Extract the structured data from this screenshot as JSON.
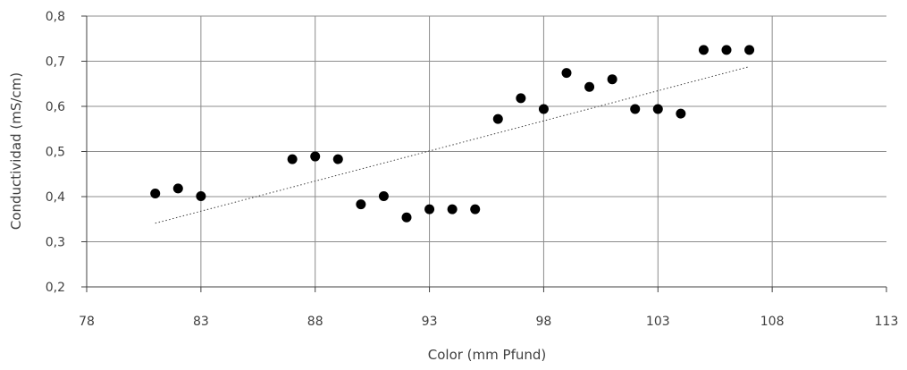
{
  "chart_data": {
    "type": "scatter",
    "title": "",
    "xlabel": "Color (mm Pfund)",
    "ylabel": "Conductividad (mS/cm)",
    "xlim": [
      78,
      113
    ],
    "ylim": [
      0.2,
      0.8
    ],
    "x_ticks": [
      "78",
      "83",
      "88",
      "93",
      "98",
      "103",
      "108",
      "113"
    ],
    "y_ticks": [
      "0,2",
      "0,3",
      "0,4",
      "0,5",
      "0,6",
      "0,7",
      "0,8"
    ],
    "grid": true,
    "legend": "none",
    "series": [
      {
        "marker_color": "#000000",
        "points": [
          {
            "x": 81,
            "y": 0.407
          },
          {
            "x": 82,
            "y": 0.418
          },
          {
            "x": 83,
            "y": 0.401
          },
          {
            "x": 87,
            "y": 0.483
          },
          {
            "x": 88,
            "y": 0.489
          },
          {
            "x": 89,
            "y": 0.483
          },
          {
            "x": 90,
            "y": 0.383
          },
          {
            "x": 91,
            "y": 0.401
          },
          {
            "x": 92,
            "y": 0.354
          },
          {
            "x": 93,
            "y": 0.372
          },
          {
            "x": 94,
            "y": 0.372
          },
          {
            "x": 95,
            "y": 0.372
          },
          {
            "x": 96,
            "y": 0.572
          },
          {
            "x": 97,
            "y": 0.618
          },
          {
            "x": 98,
            "y": 0.594
          },
          {
            "x": 99,
            "y": 0.674
          },
          {
            "x": 100,
            "y": 0.643
          },
          {
            "x": 101,
            "y": 0.66
          },
          {
            "x": 102,
            "y": 0.594
          },
          {
            "x": 103,
            "y": 0.594
          },
          {
            "x": 104,
            "y": 0.584
          },
          {
            "x": 105,
            "y": 0.725
          },
          {
            "x": 106,
            "y": 0.725
          },
          {
            "x": 107,
            "y": 0.725
          }
        ]
      }
    ],
    "trendline": {
      "style": "dotted",
      "color": "#404040",
      "from": {
        "x": 81,
        "y": 0.341
      },
      "to": {
        "x": 107,
        "y": 0.688
      }
    }
  }
}
